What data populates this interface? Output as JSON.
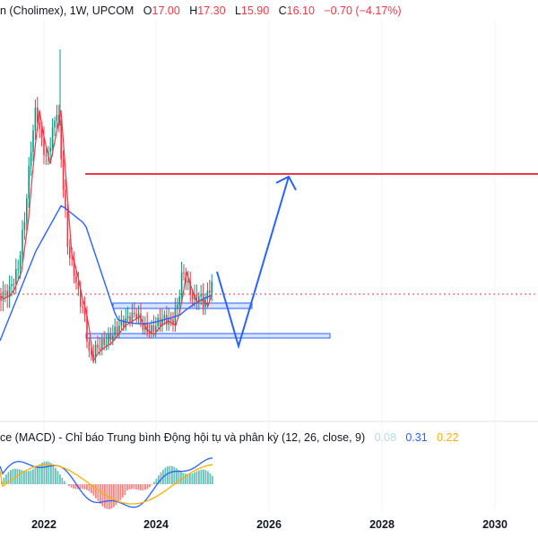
{
  "header": {
    "symbol_label": "n (Cholimex), 1W, UPCOM",
    "o_key": "O",
    "o_val": "17.00",
    "h_key": "H",
    "h_val": "17.30",
    "l_key": "L",
    "l_val": "15.90",
    "c_key": "C",
    "c_val": "16.10",
    "change": "−0.70 (−4.17%)"
  },
  "macd_header": {
    "label": "ce (MACD) - Chỉ báo Trung bình Động hội tụ và phân kỳ (12, 26, close, 9)",
    "hist_val": "0.08",
    "macd_val": "0.31",
    "signal_val": "0.22"
  },
  "colors": {
    "up": "#089981",
    "down": "#f23645",
    "ma_fast": "#f23645",
    "ma_slow": "#2962ff",
    "resistance": "#f23645",
    "arrow": "#2962ff",
    "zone": "#2962ff",
    "macd": "#2962ff",
    "signal": "#ffb000",
    "hist_up": "#26a69a",
    "hist_down": "#ef5350"
  },
  "chart_data": {
    "type": "candlestick",
    "x_axis_labels": [
      "2022",
      "2024",
      "2026",
      "2028",
      "2030"
    ],
    "last_close": 16.1,
    "resistance_level": 40.0,
    "projection_path": [
      {
        "date": "2025-02",
        "price": 18.0
      },
      {
        "date": "2025-06",
        "price": 7.5
      },
      {
        "date": "2026-05",
        "price": 40.0
      }
    ],
    "support_zones": [
      {
        "from": "2023-07",
        "to": "2025-03",
        "low": 15.3,
        "high": 15.9
      },
      {
        "from": "2022-09",
        "to": "2027-03",
        "low": 9.6,
        "high": 10.1
      }
    ],
    "macd_values": {
      "histogram": 0.08,
      "macd": 0.31,
      "signal": 0.22
    }
  }
}
